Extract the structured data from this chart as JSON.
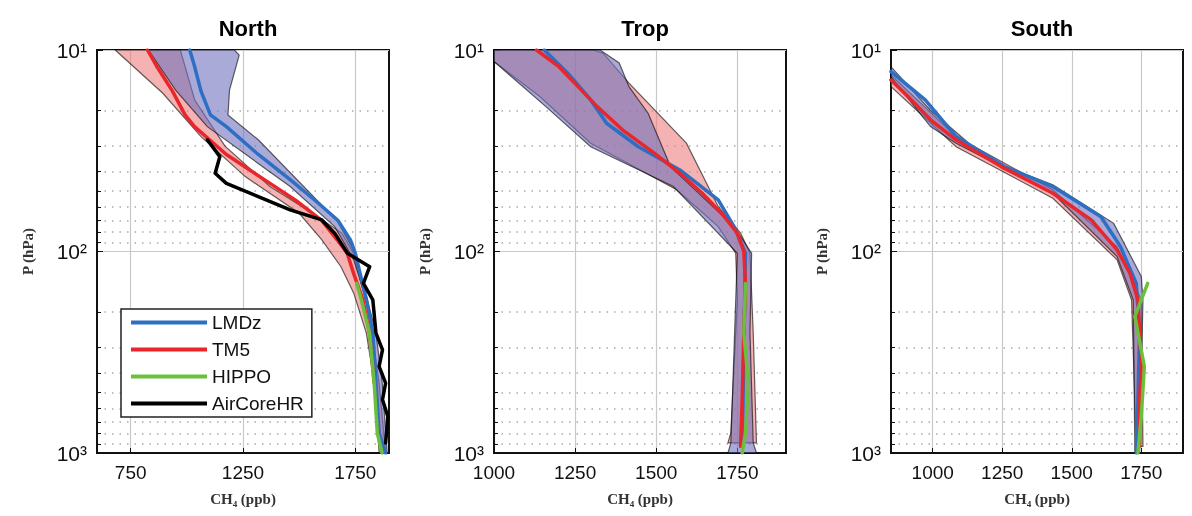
{
  "chart_data": [
    {
      "type": "line",
      "title": "North",
      "xlabel": "CH₄ (ppb)",
      "ylabel": "P (hPa)",
      "xlim": [
        600,
        1900
      ],
      "xticks": [
        750,
        1250,
        1750
      ],
      "ylim": [
        1000,
        10
      ],
      "yticks": [
        {
          "value": 10,
          "label": "10¹"
        },
        {
          "value": 20,
          "label": null
        },
        {
          "value": 30,
          "label": null
        },
        {
          "value": 40,
          "label": null
        },
        {
          "value": 50,
          "label": null
        },
        {
          "value": 60,
          "label": null
        },
        {
          "value": 70,
          "label": null
        },
        {
          "value": 80,
          "label": null
        },
        {
          "value": 90,
          "label": null
        },
        {
          "value": 100,
          "label": "10²"
        },
        {
          "value": 200,
          "label": null
        },
        {
          "value": 300,
          "label": null
        },
        {
          "value": 400,
          "label": null
        },
        {
          "value": 500,
          "label": null
        },
        {
          "value": 600,
          "label": null
        },
        {
          "value": 700,
          "label": null
        },
        {
          "value": 800,
          "label": null
        },
        {
          "value": 900,
          "label": null
        },
        {
          "value": 1000,
          "label": "10³"
        }
      ],
      "log": "y",
      "grid": true,
      "legend": "bottom left",
      "series": [
        {
          "type": "area",
          "color": "#ef7f7f",
          "x": [
            681,
            893,
            1063,
            1260,
            1500,
            1601,
            1686,
            1743,
            1799,
            1835,
            1856,
            1885,
            1856,
            1814,
            1757,
            1743,
            1690,
            1560,
            1370,
            1170,
            1035,
            971
          ],
          "values": [
            10,
            16.4,
            26.9,
            42.5,
            64.6,
            87.5,
            119,
            161,
            254,
            450,
            1000,
            1000,
            450,
            210,
            119,
            102,
            81,
            64.6,
            47.6,
            30,
            17.7,
            10
          ]
        },
        {
          "type": "area",
          "color": "#6f72bd",
          "x": [
            829,
            950,
            1091,
            1460,
            1658,
            1743,
            1799,
            1828,
            1842,
            1863,
            1892,
            1870,
            1842,
            1785,
            1750,
            1672,
            1318,
            1183,
            1190,
            1233,
            1212
          ],
          "values": [
            10,
            15.8,
            24,
            47.6,
            75.2,
            110,
            174,
            254,
            450,
            1000,
            1000,
            450,
            254,
            144,
            102,
            71,
            27.9,
            21,
            15.8,
            10.6,
            10
          ]
        },
        {
          "name": "LMDz",
          "color": "#2e6fc4",
          "x": [
            1013,
            1034,
            1063,
            1105,
            1176,
            1318,
            1460,
            1573,
            1672,
            1729,
            1750,
            1771,
            1800,
            1828,
            1842,
            1856,
            1885
          ],
          "values": [
            10,
            12,
            16,
            21,
            24,
            33,
            44,
            56,
            70,
            88,
            102,
            128,
            174,
            254,
            450,
            796,
            1000
          ]
        },
        {
          "name": "TM5",
          "color": "#e8262b",
          "x": [
            825,
            865,
            936,
            992,
            1034,
            1176,
            1345,
            1487,
            1600,
            1671,
            1714,
            1742,
            1784,
            1813,
            1834
          ],
          "values": [
            10,
            12,
            16,
            21,
            24,
            33,
            44,
            56,
            70,
            88,
            102,
            128,
            174,
            254,
            450
          ]
        },
        {
          "name": "HIPPO",
          "color": "#6cbf3d",
          "x": [
            1756,
            1777,
            1813,
            1834,
            1848,
            1869
          ],
          "values": [
            144,
            174,
            254,
            450,
            796,
            1000
          ]
        },
        {
          "name": "AirCoreHR",
          "color": "#000000",
          "x": [
            1091,
            1147,
            1126,
            1176,
            1318,
            1460,
            1601,
            1658,
            1715,
            1814,
            1786,
            1828,
            1842,
            1871,
            1856,
            1885,
            1871,
            1895,
            1885
          ],
          "values": [
            27.9,
            33.8,
            40.9,
            45.9,
            53.4,
            62.1,
            69.7,
            81.1,
            102,
            119,
            144,
            174,
            254,
            308,
            372,
            450,
            544,
            658,
            891
          ]
        }
      ]
    },
    {
      "type": "line",
      "title": "Trop",
      "xlabel": "CH₄ (ppb)",
      "ylabel": "P (hPa)",
      "xlim": [
        1000,
        1900
      ],
      "xticks": [
        1000,
        1250,
        1500,
        1750
      ],
      "ylim": [
        1000,
        10
      ],
      "yticks": [
        {
          "value": 10,
          "label": "10¹"
        },
        {
          "value": 20,
          "label": null
        },
        {
          "value": 30,
          "label": null
        },
        {
          "value": 40,
          "label": null
        },
        {
          "value": 50,
          "label": null
        },
        {
          "value": 60,
          "label": null
        },
        {
          "value": 70,
          "label": null
        },
        {
          "value": 80,
          "label": null
        },
        {
          "value": 90,
          "label": null
        },
        {
          "value": 100,
          "label": "10²"
        },
        {
          "value": 200,
          "label": null
        },
        {
          "value": 300,
          "label": null
        },
        {
          "value": 400,
          "label": null
        },
        {
          "value": 500,
          "label": null
        },
        {
          "value": 600,
          "label": null
        },
        {
          "value": 700,
          "label": null
        },
        {
          "value": 800,
          "label": null
        },
        {
          "value": 900,
          "label": null
        },
        {
          "value": 1000,
          "label": "10³"
        }
      ],
      "log": "y",
      "grid": true,
      "series": [
        {
          "type": "area",
          "color": "#ef7f7f",
          "x": [
            1000,
            1000,
            1141,
            1298,
            1563,
            1691,
            1745,
            1750,
            1730,
            1721,
            1809,
            1799,
            1789,
            1760,
            1691,
            1593,
            1416,
            1337,
            1308
          ],
          "values": [
            10,
            11.4,
            17,
            29,
            49.4,
            75.2,
            102,
            174,
            796,
            891,
            891,
            254,
            102,
            81.1,
            59.8,
            29,
            14.6,
            10.4,
            10
          ]
        },
        {
          "type": "area",
          "color": "#6f72bd",
          "x": [
            1000,
            1000,
            1160,
            1298,
            1553,
            1750,
            1730,
            1721,
            1809,
            1799,
            1789,
            1794,
            1740,
            1544,
            1475,
            1416,
            1386,
            1327
          ],
          "values": [
            10,
            11.4,
            19.1,
            30.2,
            47.6,
            102,
            891,
            1000,
            1000,
            891,
            254,
            102,
            75.2,
            37.9,
            20.6,
            15.2,
            11.6,
            10
          ]
        },
        {
          "color": "#2e6fc4",
          "x": [
            1155,
            1229,
            1298,
            1347,
            1445,
            1573,
            1691,
            1740,
            1775,
            1765
          ],
          "values": [
            10,
            13.1,
            17.7,
            23.1,
            30.2,
            39.4,
            55.5,
            75.2,
            102,
            927
          ]
        },
        {
          "color": "#e8262b",
          "x": [
            1131,
            1200,
            1259,
            1318,
            1396,
            1494,
            1573,
            1642,
            1701,
            1750,
            1770,
            1775,
            1770,
            1765,
            1760
          ],
          "values": [
            10,
            12.1,
            15.2,
            19.1,
            24.9,
            32.5,
            40.9,
            51.4,
            64.6,
            81.1,
            100,
            144,
            254,
            544,
            927
          ]
        },
        {
          "color": "#6cbf3d",
          "x": [
            1775,
            1770,
            1784,
            1775,
            1765
          ],
          "values": [
            144,
            254,
            450,
            796,
            1000
          ]
        }
      ]
    },
    {
      "type": "line",
      "title": "South",
      "xlabel": "CH₄ (ppb)",
      "ylabel": "P (hPa)",
      "xlim": [
        850,
        1900
      ],
      "xticks": [
        1000,
        1250,
        1500,
        1750
      ],
      "ylim": [
        1000,
        10
      ],
      "yticks": [
        {
          "value": 10,
          "label": "10¹"
        },
        {
          "value": 20,
          "label": null
        },
        {
          "value": 30,
          "label": null
        },
        {
          "value": 40,
          "label": null
        },
        {
          "value": 50,
          "label": null
        },
        {
          "value": 60,
          "label": null
        },
        {
          "value": 70,
          "label": null
        },
        {
          "value": 80,
          "label": null
        },
        {
          "value": 90,
          "label": null
        },
        {
          "value": 100,
          "label": "10²"
        },
        {
          "value": 200,
          "label": null
        },
        {
          "value": 300,
          "label": null
        },
        {
          "value": 400,
          "label": null
        },
        {
          "value": 500,
          "label": null
        },
        {
          "value": 600,
          "label": null
        },
        {
          "value": 700,
          "label": null
        },
        {
          "value": 800,
          "label": null
        },
        {
          "value": 900,
          "label": null
        },
        {
          "value": 1000,
          "label": "10³"
        }
      ],
      "log": "y",
      "grid": true,
      "series": [
        {
          "type": "area",
          "color": "#ef7f7f",
          "x": [
            850,
            1084,
            1432,
            1663,
            1715,
            1732,
            1756,
            1750,
            1663,
            1432,
            1084,
            850
          ],
          "values": [
            15.2,
            30.2,
            54.4,
            110,
            174,
            927,
            927,
            174,
            94.5,
            49.4,
            26.9,
            13.3
          ]
        },
        {
          "type": "area",
          "color": "#6f72bd",
          "x": [
            850,
            992,
            1084,
            1432,
            1663,
            1721,
            1727,
            1744,
            1756,
            1750,
            1651,
            1432,
            1200,
            992,
            850
          ],
          "values": [
            13.6,
            24,
            29,
            51.4,
            106,
            174,
            1000,
            1000,
            174,
            133,
            72.5,
            46.7,
            35.1,
            19.9,
            12.1
          ]
        },
        {
          "color": "#2e6fc4",
          "x": [
            850,
            973,
            1084,
            1258,
            1432,
            1605,
            1675,
            1732,
            1744,
            1738,
            1732
          ],
          "values": [
            12.8,
            17.7,
            26.9,
            37.9,
            47.6,
            67.2,
            94.5,
            144,
            254,
            544,
            1000
          ]
        },
        {
          "color": "#e8262b",
          "x": [
            850,
            911,
            992,
            1084,
            1246,
            1432,
            1570,
            1663,
            1709,
            1738,
            1744,
            1750,
            1744,
            1744
          ],
          "values": [
            14.1,
            17,
            22.2,
            27.9,
            37.9,
            51.4,
            69.7,
            98.1,
            128,
            174,
            254,
            372,
            544,
            927
          ]
        },
        {
          "color": "#6cbf3d",
          "x": [
            1773,
            1727,
            1761,
            1750,
            1738
          ],
          "values": [
            144,
            210,
            372,
            658,
            1000
          ]
        }
      ]
    }
  ]
}
